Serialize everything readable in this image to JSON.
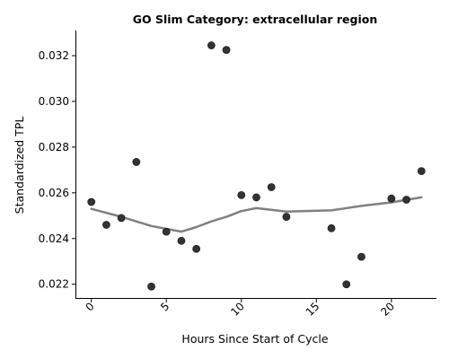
{
  "chart_data": {
    "type": "scatter",
    "title": "GO Slim Category: extracellular region",
    "xlabel": "Hours Since Start of Cycle",
    "ylabel": "Standardized TPL",
    "xlim": [
      -1,
      23
    ],
    "ylim": [
      0.0214,
      0.0331
    ],
    "xticks": [
      0,
      5,
      10,
      15,
      20
    ],
    "xtick_labels": [
      "0",
      "5",
      "10",
      "15",
      "20"
    ],
    "yticks": [
      0.022,
      0.024,
      0.026,
      0.028,
      0.03,
      0.032
    ],
    "ytick_labels": [
      "0.022",
      "0.024",
      "0.026",
      "0.028",
      "0.030",
      "0.032"
    ],
    "grid": false,
    "points": [
      {
        "x": 0,
        "y": 0.0256
      },
      {
        "x": 1,
        "y": 0.0246
      },
      {
        "x": 2,
        "y": 0.0249
      },
      {
        "x": 3,
        "y": 0.02735
      },
      {
        "x": 4,
        "y": 0.0219
      },
      {
        "x": 5,
        "y": 0.0243
      },
      {
        "x": 6,
        "y": 0.0239
      },
      {
        "x": 7,
        "y": 0.02355
      },
      {
        "x": 8,
        "y": 0.03245
      },
      {
        "x": 9,
        "y": 0.03225
      },
      {
        "x": 10,
        "y": 0.0259
      },
      {
        "x": 11,
        "y": 0.0258
      },
      {
        "x": 12,
        "y": 0.02625
      },
      {
        "x": 13,
        "y": 0.02495
      },
      {
        "x": 16,
        "y": 0.02445
      },
      {
        "x": 17,
        "y": 0.022
      },
      {
        "x": 18,
        "y": 0.0232
      },
      {
        "x": 20,
        "y": 0.02575
      },
      {
        "x": 21,
        "y": 0.0257
      },
      {
        "x": 22,
        "y": 0.02695
      }
    ],
    "trend": {
      "x": [
        0,
        2,
        4,
        6,
        7,
        8,
        9,
        10,
        11,
        13,
        16,
        18,
        20,
        22
      ],
      "y": [
        0.0253,
        0.02495,
        0.02455,
        0.0243,
        0.0245,
        0.02475,
        0.02495,
        0.0252,
        0.02533,
        0.02518,
        0.02523,
        0.02543,
        0.02558,
        0.0258
      ]
    },
    "colors": {
      "points": "#333333",
      "trend": "#808080"
    }
  }
}
